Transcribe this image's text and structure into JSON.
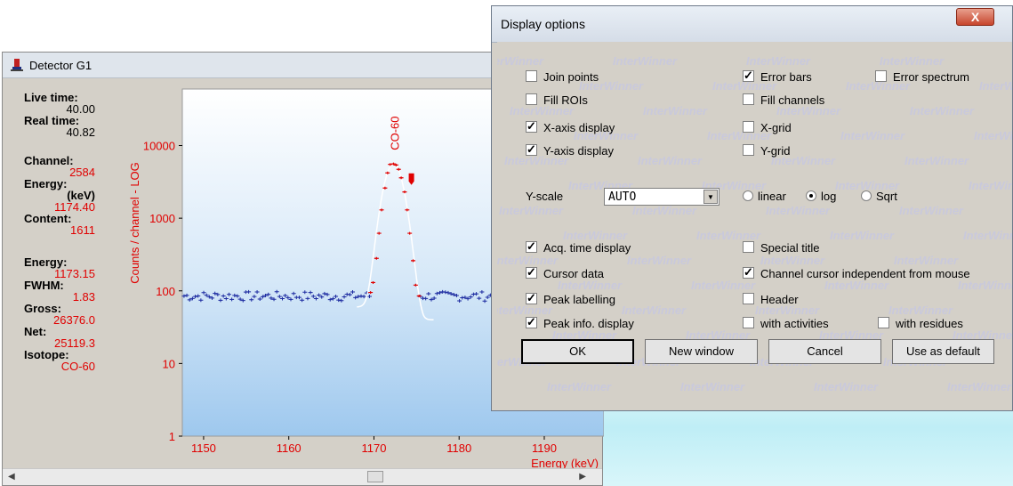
{
  "detector_window": {
    "title": "Detector G1",
    "info": [
      {
        "label": "Live time:",
        "value": "40.00",
        "red": false
      },
      {
        "label": "Real time:",
        "value": "40.82",
        "red": false
      },
      {
        "label": "Channel:",
        "value": "2584",
        "red": true
      },
      {
        "label": "Energy:",
        "value": "(keV)",
        "red": false
      },
      {
        "label": "",
        "value": "1174.40",
        "red": true
      },
      {
        "label": "Content:",
        "value": "1611",
        "red": true
      },
      {
        "label": "Energy:",
        "value": "1173.15",
        "red": true
      },
      {
        "label": "FWHM:",
        "value": "1.83",
        "red": true
      },
      {
        "label": "Gross:",
        "value": "26376.0",
        "red": true
      },
      {
        "label": "Net:",
        "value": "25119.3",
        "red": true
      },
      {
        "label": "Isotope:",
        "value": "CO-60",
        "red": true
      }
    ]
  },
  "chart_data": {
    "type": "scatter",
    "ylabel": "Counts / channel - LOG",
    "xlabel": "Energy (keV)",
    "peak_label": "CO-60",
    "y_scale": "log",
    "ylim": [
      1,
      60000
    ],
    "xlim": [
      1147.5,
      1197
    ],
    "x_ticks": [
      1150,
      1160,
      1170,
      1180,
      1190
    ],
    "y_ticks": [
      1,
      10,
      100,
      1000,
      10000
    ],
    "y_tick_labels": [
      "1",
      "10",
      "100",
      "1000",
      "10000"
    ],
    "baseline_counts": 85,
    "peak_points": [
      {
        "x": 1169.6,
        "y": 95
      },
      {
        "x": 1169.9,
        "y": 130
      },
      {
        "x": 1170.3,
        "y": 280
      },
      {
        "x": 1170.6,
        "y": 620
      },
      {
        "x": 1170.9,
        "y": 1300
      },
      {
        "x": 1171.3,
        "y": 2600
      },
      {
        "x": 1171.6,
        "y": 4200
      },
      {
        "x": 1171.9,
        "y": 5500
      },
      {
        "x": 1172.3,
        "y": 5600
      },
      {
        "x": 1172.6,
        "y": 5400
      },
      {
        "x": 1172.9,
        "y": 4700
      },
      {
        "x": 1173.2,
        "y": 3600
      },
      {
        "x": 1173.6,
        "y": 2300
      },
      {
        "x": 1173.9,
        "y": 1300
      },
      {
        "x": 1174.2,
        "y": 620
      },
      {
        "x": 1174.6,
        "y": 260
      },
      {
        "x": 1174.9,
        "y": 120
      },
      {
        "x": 1175.3,
        "y": 85
      }
    ],
    "cursor_energy": 1174.4,
    "cursor_counts": 3400,
    "colors": {
      "baseline": "#1c2aa0",
      "peak": "#e00000",
      "fit": "#ffffff",
      "axis_labels": "#e00000"
    }
  },
  "dialog": {
    "title": "Display options",
    "close": "X",
    "watermark": "InterWinner",
    "checkboxes": [
      {
        "label": "Join points",
        "checked": false
      },
      {
        "label": "Error bars",
        "checked": true
      },
      {
        "label": "Error spectrum",
        "checked": false
      },
      {
        "label": "Fill ROIs",
        "checked": false
      },
      {
        "label": "Fill channels",
        "checked": false
      },
      {
        "label": "X-axis display",
        "checked": true
      },
      {
        "label": "X-grid",
        "checked": false
      },
      {
        "label": "Y-axis display",
        "checked": true
      },
      {
        "label": "Y-grid",
        "checked": false
      },
      {
        "label": "Acq. time display",
        "checked": true
      },
      {
        "label": "Special title",
        "checked": false
      },
      {
        "label": "Cursor data",
        "checked": true
      },
      {
        "label": "Channel cursor independent from mouse",
        "checked": true
      },
      {
        "label": "Peak labelling",
        "checked": true
      },
      {
        "label": "Header",
        "checked": false
      },
      {
        "label": "Peak info. display",
        "checked": true
      },
      {
        "label": "with activities",
        "checked": false
      },
      {
        "label": "with residues",
        "checked": false
      }
    ],
    "yscale_label": "Y-scale",
    "yscale_value": "AUTO",
    "radios": [
      {
        "label": "linear",
        "selected": false
      },
      {
        "label": "log",
        "selected": true
      },
      {
        "label": "Sqrt",
        "selected": false
      }
    ],
    "buttons": [
      "OK",
      "New window",
      "Cancel",
      "Use as default"
    ]
  }
}
